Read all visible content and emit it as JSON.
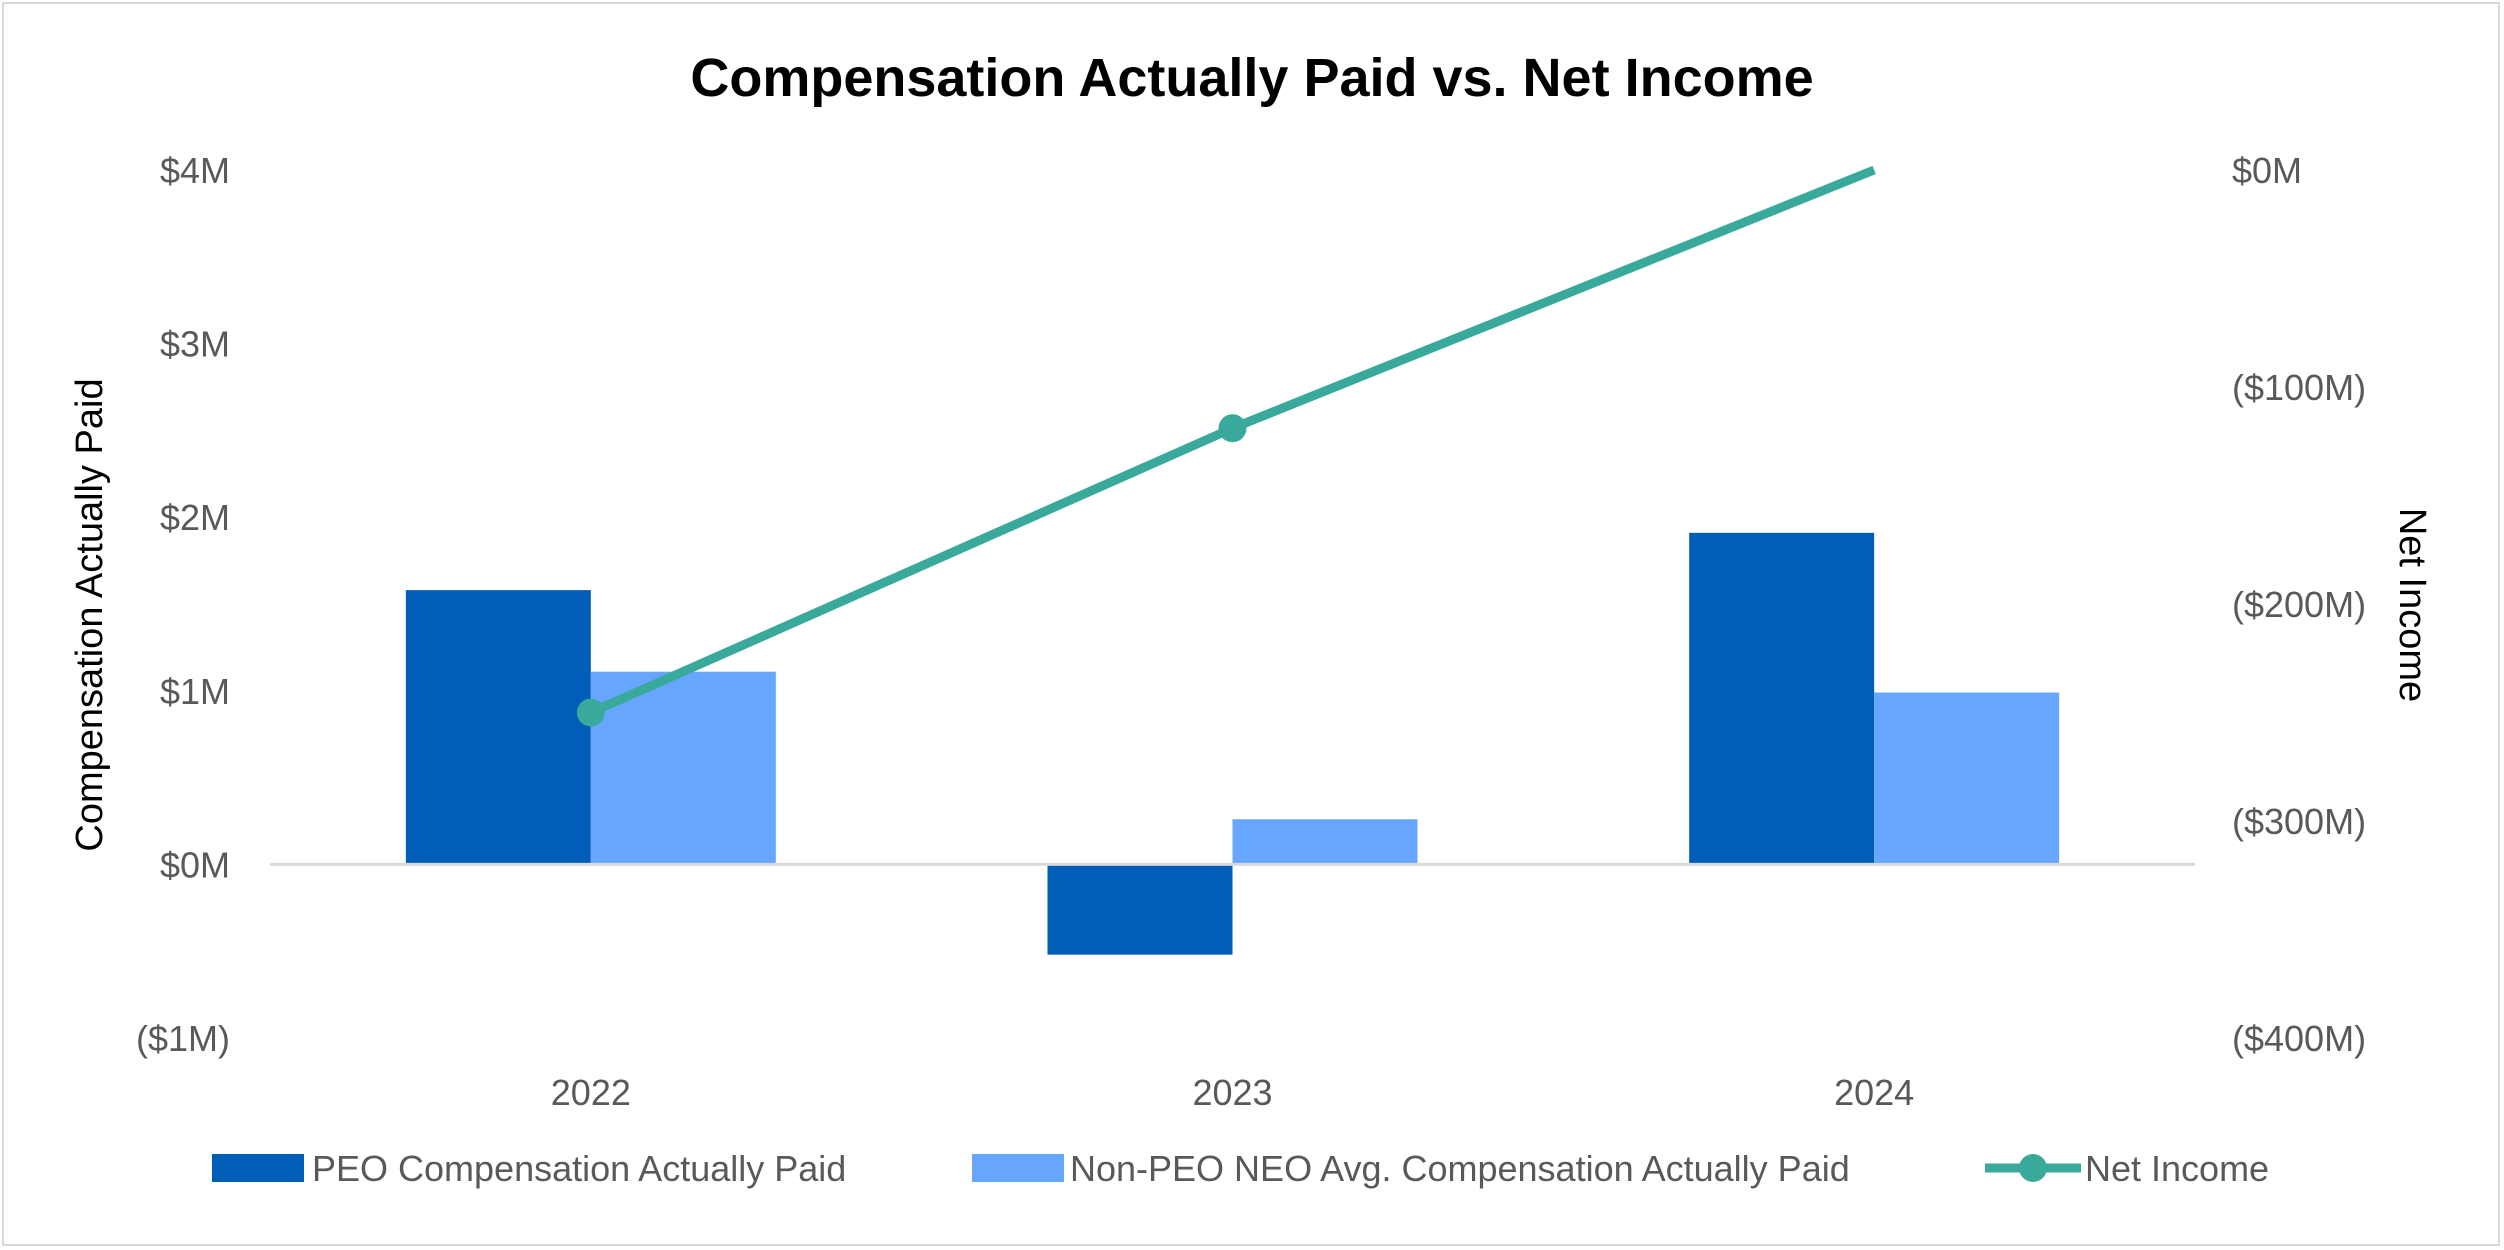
{
  "chart_data": {
    "type": "bar",
    "title": "Compensation Actually Paid vs. Net Income",
    "categories": [
      "2022",
      "2023",
      "2024"
    ],
    "series": [
      {
        "name": "PEO Compensation Actually Paid",
        "type": "bar",
        "axis": "left",
        "color": "#005EB8",
        "values": [
          1.58,
          -0.52,
          1.91
        ]
      },
      {
        "name": "Non-PEO NEO Avg. Compensation Actually Paid",
        "type": "bar",
        "axis": "left",
        "color": "#66A6FF",
        "values": [
          1.11,
          0.26,
          0.99
        ]
      },
      {
        "name": "Net Income",
        "type": "line",
        "axis": "right",
        "color": "#38A99A",
        "values": [
          -250,
          -119,
          0
        ]
      }
    ],
    "y_left": {
      "label": "Compensation Actually Paid",
      "range": [
        -1,
        4
      ],
      "ticks": [
        4,
        3,
        2,
        1,
        0,
        -1
      ],
      "tick_labels": [
        "$4M",
        "$3M",
        "$2M",
        "$1M",
        "$0M",
        "($1M)"
      ],
      "units": "$M"
    },
    "y_right": {
      "label": "Net Income",
      "range": [
        -400,
        0
      ],
      "ticks": [
        0,
        -100,
        -200,
        -300,
        -400
      ],
      "tick_labels": [
        "$0M",
        "($100M)",
        "($200M)",
        "($300M)",
        "($400M)"
      ],
      "units": "$M"
    },
    "legend": {
      "placement": "bottom"
    },
    "grid": false
  }
}
